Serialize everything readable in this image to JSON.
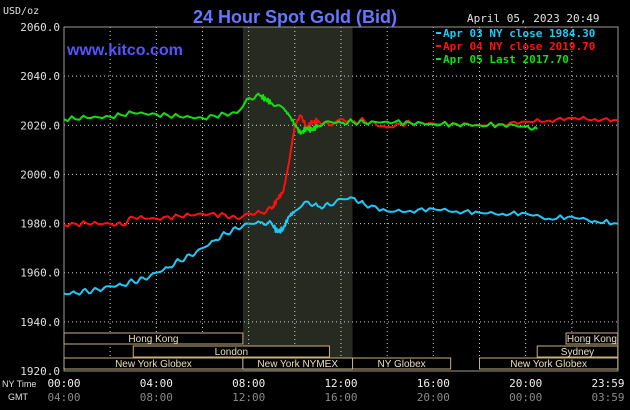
{
  "header": {
    "title": "24 Hour Spot Gold (Bid)",
    "units": "USD/oz",
    "datetime": "April 05, 2023 20:49",
    "brand": "www.kitco.com"
  },
  "colors": {
    "background": "#000000",
    "title": "#6677ff",
    "brand": "#5555ff",
    "grid": "#d0d0d0",
    "shade": "#262a20",
    "apr03": "#20c8f8",
    "apr04": "#ff1010",
    "apr05": "#10e010",
    "session_bar": "#000000",
    "session_border": "#c8b080",
    "session_text": "#e8e0c0"
  },
  "axis_row_labels": {
    "ny": "NY Time",
    "gmt": "GMT"
  },
  "chart_data": {
    "type": "line",
    "title": "24 Hour Spot Gold (Bid)",
    "ylabel": "USD/oz",
    "x_unit": "NY time hours",
    "xlim": [
      0,
      24
    ],
    "ylim": [
      1920,
      2060
    ],
    "yticks": [
      "1920.0",
      "1940.0",
      "1960.0",
      "1980.0",
      "2000.0",
      "2020.0",
      "2040.0",
      "2060.0"
    ],
    "xticks_ny": [
      "00:00",
      "04:00",
      "08:00",
      "12:00",
      "16:00",
      "20:00",
      "23:59"
    ],
    "xticks_gmt": [
      "04:00",
      "08:00",
      "12:00",
      "16:00",
      "20:00",
      "00:00",
      "03:59"
    ],
    "legend_position": "top-right",
    "shaded_range": [
      7.75,
      12.5
    ],
    "series": [
      {
        "name": "Apr 03 NY close 1984.30",
        "color_key": "apr03",
        "x": [
          0,
          0.5,
          1,
          1.5,
          2,
          2.5,
          3,
          3.5,
          4,
          4.5,
          5,
          5.5,
          6,
          6.5,
          7,
          7.5,
          8,
          8.5,
          9,
          9.25,
          9.5,
          9.75,
          10,
          10.5,
          11,
          11.5,
          12,
          12.5,
          13,
          14,
          15,
          16,
          17,
          18,
          19,
          20,
          21,
          22,
          23,
          24
        ],
        "y": [
          1951.5,
          1951.8,
          1952.5,
          1953,
          1954.5,
          1955,
          1956.5,
          1957.5,
          1960,
          1962,
          1965,
          1967,
          1970,
          1973,
          1976,
          1978,
          1980,
          1980.5,
          1980,
          1976.5,
          1978,
          1983,
          1985,
          1989,
          1987,
          1987.5,
          1990,
          1990.5,
          1988,
          1985,
          1985.2,
          1986,
          1985,
          1984.5,
          1984,
          1984.2,
          1982,
          1982.8,
          1981,
          1980
        ]
      },
      {
        "name": "Apr 04 NY close 2019.70",
        "color_key": "apr04",
        "x": [
          0,
          1,
          2,
          2.5,
          3,
          4,
          5,
          6,
          7,
          7.5,
          8,
          8.5,
          9,
          9.25,
          9.5,
          9.75,
          10,
          10.25,
          10.5,
          10.75,
          11,
          11.5,
          12,
          12.5,
          13,
          13.5,
          14,
          14.5,
          15,
          16,
          17,
          18,
          19,
          20,
          21,
          22,
          23,
          24
        ],
        "y": [
          1979.5,
          1980,
          1980,
          1979.5,
          1982.5,
          1982,
          1983,
          1984,
          1983.5,
          1982,
          1984,
          1984.5,
          1986,
          1990,
          1993,
          2005,
          2020,
          2024,
          2019.5,
          2021,
          2022,
          2020,
          2022.5,
          2021.5,
          2022,
          2020.5,
          2019,
          2020.5,
          2021,
          2020.7,
          2020.5,
          2020,
          2020.5,
          2021.5,
          2022,
          2023,
          2022.5,
          2022
        ]
      },
      {
        "name": "Apr 05 Last 2017.70",
        "color_key": "apr05",
        "x": [
          0,
          1,
          2,
          3,
          4,
          5,
          6,
          7,
          7.5,
          8,
          8.5,
          8.75,
          9,
          9.5,
          9.75,
          10,
          10.25,
          10.5,
          10.75,
          11,
          11.5,
          12,
          12.5,
          13,
          14,
          15,
          16,
          17,
          18,
          19,
          20,
          20.5
        ],
        "y": [
          2022.5,
          2023,
          2023.5,
          2025,
          2024.5,
          2023.5,
          2023,
          2024.5,
          2025,
          2031,
          2032,
          2030.5,
          2029,
          2027,
          2024,
          2020.5,
          2016.5,
          2019,
          2018,
          2020,
          2021.5,
          2021,
          2021.5,
          2021,
          2021.5,
          2021,
          2020.5,
          2020.5,
          2020,
          2020.3,
          2019.5,
          2018.5
        ]
      }
    ],
    "sessions": [
      {
        "label": "Hong Kong",
        "start": 0,
        "end": 7.75,
        "row": 0
      },
      {
        "label": "Hong Kong",
        "start": 21.75,
        "end": 23.99,
        "row": 0
      },
      {
        "label": "London",
        "start": 3,
        "end": 11.5,
        "row": 1
      },
      {
        "label": "Sydney",
        "start": 20.5,
        "end": 23.99,
        "row": 1
      },
      {
        "label": "New York Globex",
        "start": 0,
        "end": 7.75,
        "row": 2
      },
      {
        "label": "New York NYMEX",
        "start": 7.75,
        "end": 12.5,
        "row": 2
      },
      {
        "label": "NY Globex",
        "start": 12.5,
        "end": 16.75,
        "row": 2
      },
      {
        "label": "New York Globex",
        "start": 18,
        "end": 23.99,
        "row": 2
      }
    ]
  }
}
